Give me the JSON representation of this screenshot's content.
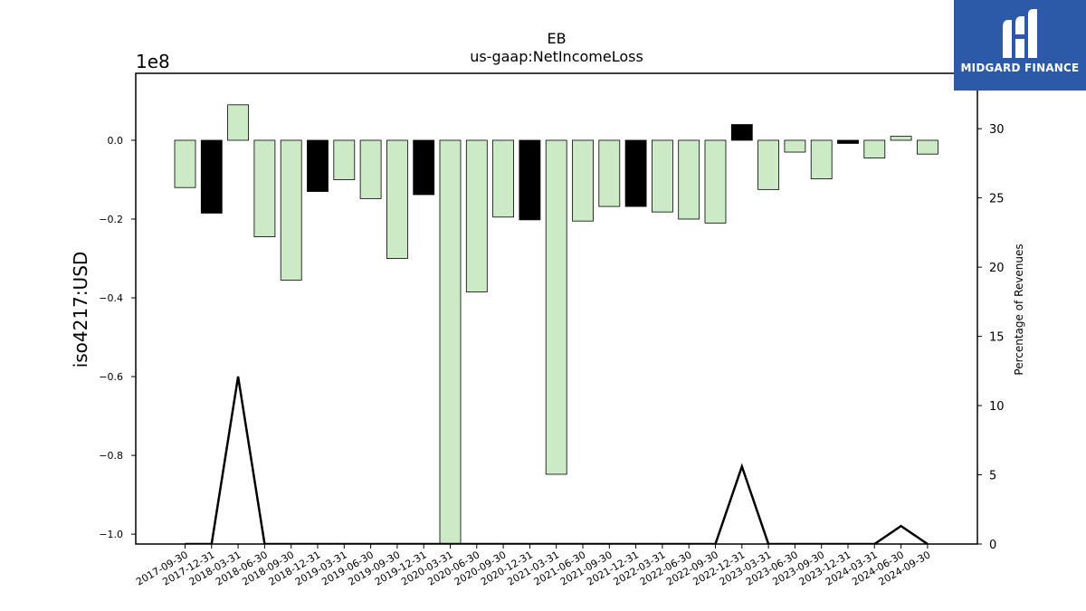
{
  "brand": {
    "name": "MIDGARD FINANCE",
    "logo_icon": "midgard-m-logo-icon",
    "background": "#2c5aa8"
  },
  "chart_data": {
    "type": "bar",
    "title": "EB",
    "subtitle": "us-gaap:NetIncomeLoss",
    "ylabel": "iso4217:USD",
    "y2label": "Percentage of Revenues",
    "y_offset_label": "1e8",
    "ylim": [
      -1.025,
      0.17
    ],
    "y2lim": [
      0,
      34
    ],
    "yticks": [
      0.0,
      -0.2,
      -0.4,
      -0.6,
      -0.8,
      -1.0
    ],
    "y2ticks": [
      0,
      5,
      10,
      15,
      20,
      25,
      30
    ],
    "grid": false,
    "colors": {
      "quarter": "#cdeac6",
      "year_end": "#000000",
      "line": "#000000"
    },
    "categories": [
      "2017-09-30",
      "2017-12-31",
      "2018-03-31",
      "2018-06-30",
      "2018-09-30",
      "2018-12-31",
      "2019-03-31",
      "2019-06-30",
      "2019-09-30",
      "2019-12-31",
      "2020-03-31",
      "2020-06-30",
      "2020-09-30",
      "2020-12-31",
      "2021-03-31",
      "2021-06-30",
      "2021-09-30",
      "2021-12-31",
      "2022-03-31",
      "2022-06-30",
      "2022-09-30",
      "2022-12-31",
      "2023-03-31",
      "2023-06-30",
      "2023-09-30",
      "2023-12-31",
      "2024-03-31",
      "2024-06-30",
      "2024-09-30"
    ],
    "series": [
      {
        "type": "bar",
        "values": [
          -0.12,
          -0.185,
          0.09,
          -0.245,
          -0.355,
          -0.13,
          -0.1,
          -0.148,
          -0.3,
          -0.138,
          -1.03,
          -0.385,
          -0.195,
          -0.202,
          -0.848,
          -0.205,
          -0.168,
          -0.168,
          -0.182,
          -0.2,
          -0.21,
          0.04,
          -0.125,
          -0.03,
          -0.098,
          -0.008,
          -0.045,
          0.01,
          -0.035
        ],
        "year_end": [
          false,
          true,
          false,
          false,
          false,
          true,
          false,
          false,
          false,
          true,
          false,
          false,
          false,
          true,
          false,
          false,
          false,
          true,
          false,
          false,
          false,
          true,
          false,
          false,
          false,
          true,
          false,
          false,
          false
        ]
      },
      {
        "type": "line",
        "axis": "right",
        "values": [
          0,
          0,
          12.1,
          0,
          0,
          0,
          0,
          0,
          0,
          0,
          0,
          0,
          0,
          0,
          0,
          0,
          0,
          0,
          0,
          0,
          0,
          5.6,
          0,
          0,
          0,
          0,
          0,
          1.3,
          0
        ]
      }
    ]
  }
}
